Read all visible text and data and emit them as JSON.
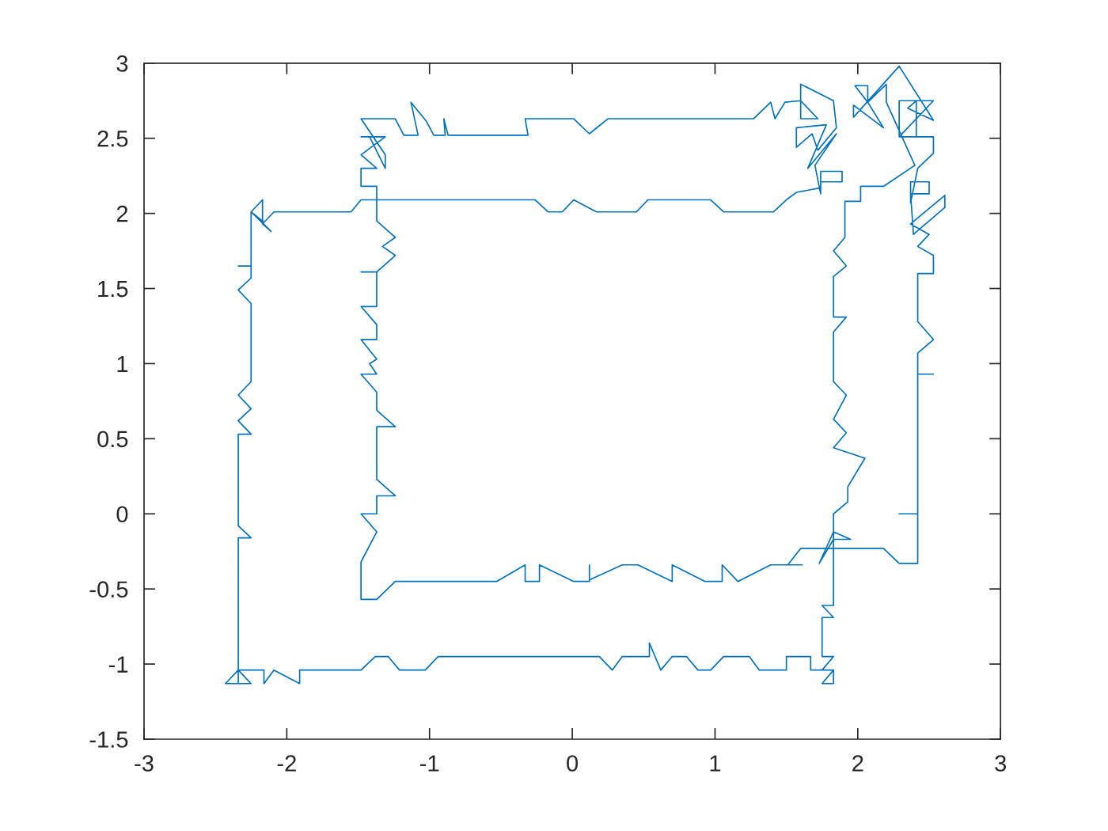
{
  "chart_data": {
    "type": "line",
    "color": "#0072bd",
    "x": [
      -2.34,
      -2.34,
      -2.25,
      -2.34,
      -2.34,
      -2.25,
      -2.34,
      -2.25,
      -2.34,
      -2.25,
      -2.25,
      -2.34,
      -2.25,
      -2.25,
      -2.34,
      -2.25,
      -2.25,
      -2.11,
      -2.17,
      -2.17,
      -2.25,
      -2.16,
      -2.09,
      -1.55,
      -1.48,
      -0.26,
      -0.17,
      -0.07,
      0.01,
      0.17,
      0.45,
      0.53,
      0.97,
      1.06,
      1.41,
      1.5,
      1.57,
      1.74,
      1.74,
      1.89,
      1.89,
      1.74,
      1.74,
      1.7,
      1.85,
      1.65,
      1.78,
      1.57,
      1.57,
      1.68,
      1.72,
      1.85,
      1.83,
      1.6,
      1.6,
      1.72,
      1.6,
      1.6,
      1.49,
      1.42,
      1.39,
      1.27,
      0.25,
      0.12,
      0.01,
      -0.33,
      -0.31,
      -0.87,
      -0.9,
      -0.89,
      -0.97,
      -1.02,
      -1.13,
      -1.08,
      -1.18,
      -1.24,
      -1.48,
      -1.31,
      -1.31,
      -1.42,
      -1.48,
      -1.31,
      -1.48,
      -1.37,
      -1.48,
      -1.48,
      -1.37,
      -1.37,
      -1.24,
      -1.33,
      -1.24,
      -1.37,
      -1.48,
      -1.37,
      -1.37,
      -1.48,
      -1.37,
      -1.37,
      -1.48,
      -1.37,
      -1.42,
      -1.37,
      -1.48,
      -1.37,
      -1.37,
      -1.24,
      -1.37,
      -1.37,
      -1.24,
      -1.37,
      -1.37,
      -1.48,
      -1.37,
      -1.48,
      -1.48,
      -1.37,
      -1.24,
      -0.66,
      -0.53,
      -0.33,
      -0.33,
      -0.23,
      -0.23,
      0.01,
      0.12,
      0.12,
      0.12,
      0.35,
      0.46,
      0.7,
      0.7,
      0.93,
      1.05,
      1.05,
      1.16,
      1.39,
      1.61,
      1.51,
      1.6,
      2.18,
      2.29,
      2.42,
      2.42,
      2.29,
      2.42,
      2.42,
      2.53,
      2.42,
      2.42,
      2.53,
      2.42,
      2.42,
      2.53,
      2.53,
      2.42,
      2.5,
      2.37,
      2.61,
      2.61,
      2.39,
      2.37,
      2.5,
      2.5,
      2.37,
      2.37,
      2.42,
      2.53,
      2.53,
      2.29,
      2.53,
      2.29,
      2.29,
      2.41,
      2.41,
      2.35,
      2.53,
      2.29,
      1.97,
      1.97,
      2.18,
      2.07,
      1.98,
      2.07,
      2.07,
      2.2,
      2.2,
      2.4,
      2.18,
      2.02,
      2.02,
      1.91,
      1.91,
      1.83,
      1.92,
      1.83,
      1.83,
      1.92,
      1.83,
      1.83,
      1.92,
      1.83,
      1.92,
      1.83,
      2.05,
      1.93,
      1.93,
      1.83,
      1.83,
      1.95,
      1.83,
      1.73,
      1.83,
      1.83,
      1.75,
      1.83,
      1.75,
      1.75,
      1.83,
      1.75,
      1.83,
      1.75,
      1.83,
      1.83,
      1.67,
      1.67,
      1.5,
      1.5,
      1.31,
      1.24,
      1.06,
      0.97,
      0.88,
      0.8,
      0.7,
      0.62,
      0.54,
      0.54,
      0.35,
      0.28,
      0.19,
      -0.94,
      -1.03,
      -1.21,
      -1.29,
      -1.38,
      -1.48,
      -1.91,
      -1.91,
      -2.09,
      -2.16,
      -2.16,
      -2.34,
      -2.43,
      -2.25,
      -2.34
    ],
    "values": [
      -1.13,
      -0.16,
      -0.16,
      -0.08,
      0.53,
      0.53,
      0.62,
      0.7,
      0.79,
      0.88,
      1.4,
      1.49,
      1.57,
      1.65,
      1.65,
      1.65,
      2.01,
      1.88,
      1.93,
      2.09,
      2.01,
      1.94,
      2.01,
      2.01,
      2.09,
      2.09,
      2.01,
      2.01,
      2.09,
      2.01,
      2.01,
      2.09,
      2.09,
      2.01,
      2.01,
      2.09,
      2.14,
      2.17,
      2.21,
      2.21,
      2.28,
      2.28,
      2.13,
      2.32,
      2.53,
      2.3,
      2.59,
      2.57,
      2.44,
      2.53,
      2.42,
      2.57,
      2.75,
      2.86,
      2.75,
      2.63,
      2.63,
      2.75,
      2.74,
      2.63,
      2.74,
      2.63,
      2.63,
      2.53,
      2.63,
      2.63,
      2.52,
      2.52,
      2.63,
      2.52,
      2.52,
      2.61,
      2.74,
      2.52,
      2.52,
      2.63,
      2.63,
      2.39,
      2.3,
      2.51,
      2.51,
      2.51,
      2.39,
      2.3,
      2.3,
      2.18,
      2.18,
      1.95,
      1.84,
      1.78,
      1.72,
      1.61,
      1.61,
      1.61,
      1.38,
      1.38,
      1.26,
      1.16,
      1.16,
      1.03,
      1.0,
      0.93,
      0.93,
      0.81,
      0.69,
      0.58,
      0.58,
      0.23,
      0.12,
      0.12,
      0.0,
      0.0,
      -0.12,
      -0.32,
      -0.57,
      -0.57,
      -0.45,
      -0.45,
      -0.45,
      -0.34,
      -0.45,
      -0.45,
      -0.34,
      -0.45,
      -0.45,
      -0.34,
      -0.44,
      -0.34,
      -0.34,
      -0.45,
      -0.34,
      -0.45,
      -0.45,
      -0.34,
      -0.45,
      -0.34,
      -0.34,
      -0.34,
      -0.23,
      -0.23,
      -0.33,
      -0.33,
      0.0,
      0.0,
      0.0,
      0.93,
      0.93,
      0.93,
      1.07,
      1.16,
      1.28,
      1.6,
      1.6,
      1.72,
      1.78,
      1.86,
      1.93,
      2.12,
      2.04,
      1.86,
      2.13,
      2.13,
      2.21,
      2.21,
      2.07,
      2.3,
      2.4,
      2.51,
      2.51,
      2.75,
      2.75,
      2.51,
      2.51,
      2.75,
      2.7,
      2.62,
      2.98,
      2.64,
      2.72,
      2.57,
      2.74,
      2.85,
      2.85,
      2.74,
      2.86,
      2.74,
      2.32,
      2.18,
      2.18,
      2.08,
      2.08,
      1.84,
      1.75,
      1.65,
      1.58,
      1.31,
      1.31,
      1.21,
      0.88,
      0.79,
      0.63,
      0.54,
      0.44,
      0.37,
      0.18,
      0.08,
      0.0,
      -0.12,
      -0.17,
      -0.17,
      -0.33,
      -0.12,
      -0.61,
      -0.61,
      -0.69,
      -0.69,
      -0.95,
      -0.95,
      -1.04,
      -1.04,
      -1.13,
      -1.13,
      -1.04,
      -1.04,
      -0.95,
      -0.95,
      -1.04,
      -1.04,
      -0.95,
      -0.95,
      -1.04,
      -1.04,
      -0.95,
      -0.95,
      -1.04,
      -0.86,
      -0.95,
      -0.95,
      -1.04,
      -0.95,
      -0.95,
      -1.04,
      -1.04,
      -0.95,
      -0.95,
      -1.04,
      -1.04,
      -1.13,
      -1.04,
      -1.13,
      -1.04,
      -1.04,
      -1.13,
      -1.13,
      -1.04
    ],
    "xlim": [
      -3,
      3
    ],
    "ylim": [
      -1.5,
      3
    ],
    "xticks": [
      -3,
      -2,
      -1,
      0,
      1,
      2,
      3
    ],
    "yticks": [
      -1.5,
      -1,
      -0.5,
      0,
      0.5,
      1,
      1.5,
      2,
      2.5,
      3
    ]
  }
}
